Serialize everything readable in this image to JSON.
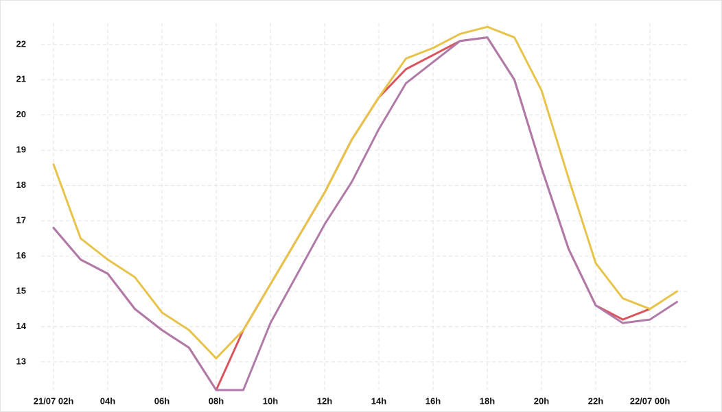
{
  "chart_data": {
    "type": "line",
    "categories": [
      "21/07 02h",
      null,
      "04h",
      null,
      "06h",
      null,
      "08h",
      null,
      "10h",
      null,
      "12h",
      null,
      "14h",
      null,
      "16h",
      null,
      "18h",
      null,
      "20h",
      null,
      "22h",
      null,
      "22/07 00h",
      null
    ],
    "series": [
      {
        "color": "#d9555e",
        "values": [
          16.8,
          15.9,
          15.5,
          14.5,
          13.9,
          13.4,
          12.2,
          13.9,
          15.2,
          16.5,
          17.8,
          19.3,
          20.5,
          21.3,
          21.7,
          22.1,
          22.2,
          21.0,
          18.5,
          16.2,
          14.6,
          14.2,
          14.5,
          null
        ]
      },
      {
        "color": "#b07aa8",
        "values": [
          16.8,
          15.9,
          15.5,
          14.5,
          13.9,
          13.4,
          12.2,
          12.2,
          14.1,
          15.5,
          16.9,
          18.1,
          19.6,
          20.9,
          21.5,
          22.1,
          22.2,
          21.0,
          18.5,
          16.2,
          14.6,
          14.1,
          14.2,
          14.7
        ]
      },
      {
        "color": "#e8c34a",
        "values": [
          18.6,
          16.5,
          15.9,
          15.4,
          14.4,
          13.9,
          13.1,
          13.9,
          15.2,
          16.5,
          17.8,
          19.3,
          20.5,
          21.6,
          21.9,
          22.3,
          22.5,
          22.2,
          20.7,
          18.2,
          15.8,
          14.8,
          14.5,
          15.0
        ]
      }
    ],
    "ylim": [
      12.2,
      22.6
    ],
    "yticks": [
      13,
      14,
      15,
      16,
      17,
      18,
      19,
      20,
      21,
      22
    ],
    "grid": true
  }
}
